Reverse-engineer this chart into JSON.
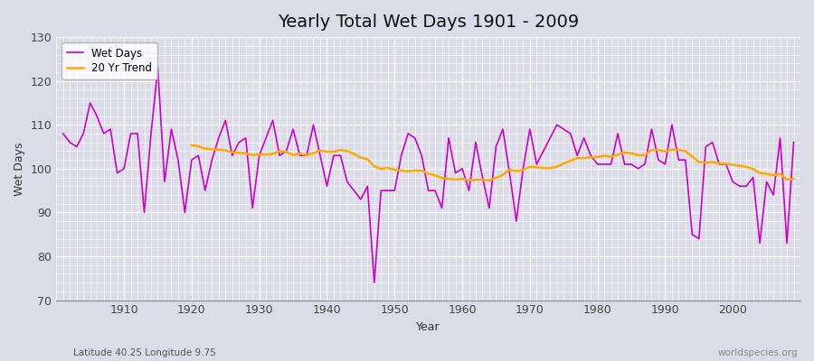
{
  "title": "Yearly Total Wet Days 1901 - 2009",
  "xlabel": "Year",
  "ylabel": "Wet Days",
  "subtitle_left": "Latitude 40.25 Longitude 9.75",
  "subtitle_right": "worldspecies.org",
  "legend_entries": [
    "Wet Days",
    "20 Yr Trend"
  ],
  "wet_days_color": "#cc00cc",
  "trend_color": "#ffaa00",
  "background_color": "#dcdce8",
  "ylim": [
    70,
    130
  ],
  "xlim": [
    1901,
    2009
  ],
  "yticks": [
    70,
    80,
    90,
    100,
    110,
    120,
    130
  ],
  "xticks": [
    1910,
    1920,
    1930,
    1940,
    1950,
    1960,
    1970,
    1980,
    1990,
    2000
  ],
  "wet_days": {
    "1901": 108,
    "1902": 106,
    "1903": 105,
    "1904": 108,
    "1905": 115,
    "1906": 112,
    "1907": 108,
    "1908": 109,
    "1909": 99,
    "1910": 100,
    "1911": 108,
    "1912": 108,
    "1913": 90,
    "1914": 108,
    "1915": 123,
    "1916": 97,
    "1917": 109,
    "1918": 102,
    "1919": 90,
    "1920": 102,
    "1921": 103,
    "1922": 95,
    "1923": 102,
    "1924": 107,
    "1925": 111,
    "1926": 103,
    "1927": 106,
    "1928": 107,
    "1929": 91,
    "1930": 103,
    "1931": 107,
    "1932": 111,
    "1933": 103,
    "1934": 104,
    "1935": 109,
    "1936": 103,
    "1937": 103,
    "1938": 110,
    "1939": 103,
    "1940": 96,
    "1941": 103,
    "1942": 103,
    "1943": 97,
    "1944": 95,
    "1945": 93,
    "1946": 96,
    "1947": 74,
    "1948": 95,
    "1949": 95,
    "1950": 95,
    "1951": 103,
    "1952": 108,
    "1953": 107,
    "1954": 103,
    "1955": 95,
    "1956": 95,
    "1957": 91,
    "1958": 107,
    "1959": 99,
    "1960": 100,
    "1961": 95,
    "1962": 106,
    "1963": 98,
    "1964": 91,
    "1965": 105,
    "1966": 109,
    "1967": 99,
    "1968": 88,
    "1969": 100,
    "1970": 109,
    "1971": 101,
    "1972": 104,
    "1973": 107,
    "1974": 110,
    "1975": 109,
    "1976": 108,
    "1977": 103,
    "1978": 107,
    "1979": 103,
    "1980": 101,
    "1981": 101,
    "1982": 101,
    "1983": 108,
    "1984": 101,
    "1985": 101,
    "1986": 100,
    "1987": 101,
    "1988": 109,
    "1989": 102,
    "1990": 101,
    "1991": 110,
    "1992": 102,
    "1993": 102,
    "1994": 85,
    "1995": 84,
    "1996": 105,
    "1997": 106,
    "1998": 101,
    "1999": 101,
    "2000": 97,
    "2001": 96,
    "2002": 96,
    "2003": 98,
    "2004": 83,
    "2005": 97,
    "2006": 94,
    "2007": 107,
    "2008": 83,
    "2009": 106
  }
}
